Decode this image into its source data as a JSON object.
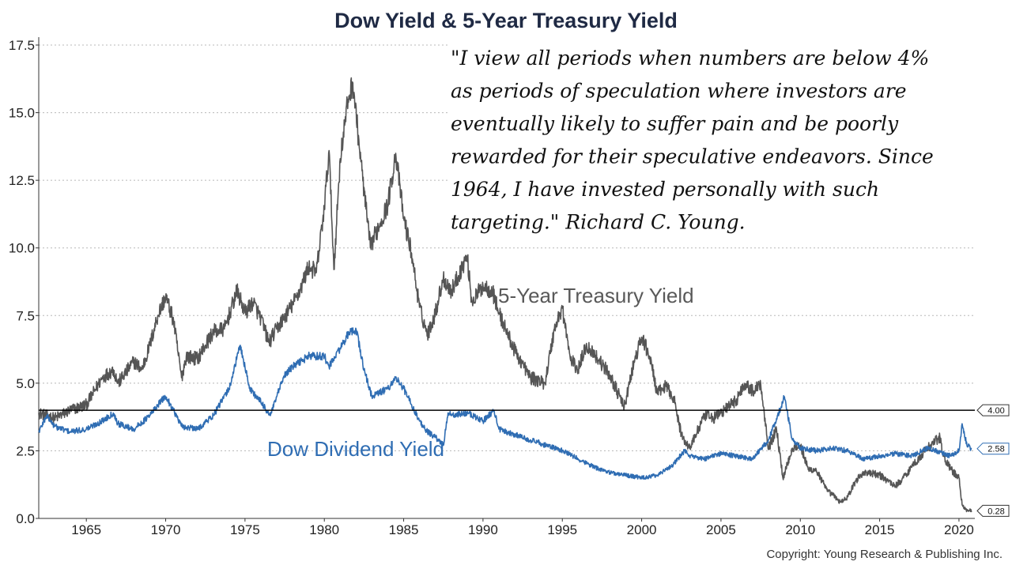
{
  "chart_data": {
    "type": "line",
    "title": "Dow Yield & 5-Year Treasury Yield",
    "xlabel": "",
    "ylabel": "",
    "xlim": [
      1962.0,
      2021.0
    ],
    "ylim": [
      0.0,
      17.5
    ],
    "x_ticks": [
      {
        "value": 1965,
        "label": "1965"
      },
      {
        "value": 1970,
        "label": "1970"
      },
      {
        "value": 1975,
        "label": "1975"
      },
      {
        "value": 1980,
        "label": "1980"
      },
      {
        "value": 1985,
        "label": "1985"
      },
      {
        "value": 1990,
        "label": "1990"
      },
      {
        "value": 1995,
        "label": "1995"
      },
      {
        "value": 2000,
        "label": "2000"
      },
      {
        "value": 2005,
        "label": "2005"
      },
      {
        "value": 2010,
        "label": "2010"
      },
      {
        "value": 2015,
        "label": "2015"
      },
      {
        "value": 2020,
        "label": "2020"
      }
    ],
    "y_ticks": [
      {
        "value": 0.0,
        "label": "0.0"
      },
      {
        "value": 2.5,
        "label": "2.5"
      },
      {
        "value": 5.0,
        "label": "5.0"
      },
      {
        "value": 7.5,
        "label": "7.5"
      },
      {
        "value": 10.0,
        "label": "10.0"
      },
      {
        "value": 12.5,
        "label": "12.5"
      },
      {
        "value": 15.0,
        "label": "15.0"
      },
      {
        "value": 17.5,
        "label": "17.5"
      }
    ],
    "grid": true,
    "series": [
      {
        "name": "5-Year Treasury Yield",
        "color": "#555555",
        "x": [
          1962.0,
          1963.0,
          1964.0,
          1965.0,
          1966.0,
          1966.7,
          1967.0,
          1968.0,
          1968.5,
          1969.0,
          1969.5,
          1970.0,
          1970.5,
          1971.0,
          1971.3,
          1972.0,
          1973.0,
          1973.7,
          1974.5,
          1975.0,
          1975.5,
          1976.0,
          1976.5,
          1977.0,
          1978.0,
          1978.5,
          1979.0,
          1979.5,
          1980.0,
          1980.3,
          1980.6,
          1981.0,
          1981.5,
          1981.8,
          1982.3,
          1982.9,
          1983.0,
          1983.5,
          1984.0,
          1984.5,
          1985.0,
          1985.5,
          1986.0,
          1986.5,
          1987.0,
          1987.5,
          1987.8,
          1988.0,
          1989.0,
          1989.3,
          1990.0,
          1990.6,
          1991.0,
          1992.0,
          1993.0,
          1993.9,
          1994.5,
          1995.0,
          1995.5,
          1996.0,
          1996.5,
          1997.0,
          1998.0,
          1998.9,
          1999.5,
          2000.0,
          2000.5,
          2001.0,
          2001.5,
          2002.0,
          2002.5,
          2003.0,
          2003.5,
          2004.0,
          2004.5,
          2005.0,
          2006.0,
          2006.5,
          2007.0,
          2007.5,
          2008.0,
          2008.5,
          2008.9,
          2009.5,
          2010.0,
          2010.5,
          2011.0,
          2011.7,
          2012.0,
          2012.5,
          2013.0,
          2013.5,
          2014.0,
          2015.0,
          2016.0,
          2016.5,
          2017.0,
          2018.0,
          2018.8,
          2019.0,
          2019.5,
          2020.0,
          2020.2,
          2020.5,
          2020.8
        ],
        "values": [
          3.9,
          3.7,
          4.0,
          4.2,
          5.2,
          5.5,
          5.0,
          5.8,
          5.5,
          6.4,
          7.5,
          8.2,
          7.3,
          5.2,
          6.0,
          5.9,
          6.9,
          7.0,
          8.4,
          7.6,
          8.0,
          7.4,
          6.5,
          7.0,
          7.9,
          8.5,
          9.3,
          9.1,
          11.5,
          13.6,
          9.2,
          13.3,
          15.5,
          16.1,
          13.2,
          10.0,
          10.2,
          10.9,
          11.6,
          13.5,
          11.1,
          9.8,
          7.8,
          6.8,
          7.6,
          8.9,
          8.6,
          8.4,
          9.7,
          8.0,
          8.6,
          8.4,
          7.6,
          6.2,
          5.2,
          5.0,
          7.0,
          7.8,
          5.9,
          5.5,
          6.4,
          6.1,
          5.3,
          4.1,
          5.7,
          6.7,
          6.0,
          4.6,
          4.9,
          4.5,
          3.1,
          2.6,
          3.2,
          3.8,
          3.7,
          3.9,
          4.4,
          5.0,
          4.7,
          5.0,
          2.6,
          3.3,
          1.5,
          2.6,
          2.7,
          1.8,
          1.8,
          1.0,
          0.9,
          0.6,
          0.8,
          1.4,
          1.7,
          1.6,
          1.2,
          1.5,
          1.9,
          2.6,
          3.0,
          2.3,
          1.8,
          1.5,
          0.5,
          0.3,
          0.28
        ]
      },
      {
        "name": "Dow Dividend Yield",
        "color": "#2f6db3",
        "x": [
          1962.0,
          1962.5,
          1963.0,
          1964.0,
          1965.0,
          1966.0,
          1966.7,
          1967.0,
          1968.0,
          1969.0,
          1969.5,
          1970.0,
          1970.5,
          1971.0,
          1972.0,
          1973.0,
          1974.0,
          1974.7,
          1975.3,
          1976.0,
          1976.6,
          1977.0,
          1977.5,
          1978.0,
          1979.0,
          1980.0,
          1980.3,
          1981.0,
          1981.5,
          1982.0,
          1982.5,
          1983.0,
          1984.0,
          1984.5,
          1985.0,
          1985.5,
          1986.0,
          1986.5,
          1987.0,
          1987.5,
          1987.8,
          1988.0,
          1989.0,
          1990.0,
          1990.7,
          1991.0,
          1992.0,
          1993.0,
          1994.0,
          1995.0,
          1996.0,
          1997.0,
          1998.0,
          1999.0,
          2000.0,
          2001.0,
          2002.0,
          2002.7,
          2003.0,
          2004.0,
          2005.0,
          2006.0,
          2007.0,
          2008.0,
          2008.5,
          2009.0,
          2009.5,
          2010.0,
          2011.0,
          2012.0,
          2013.0,
          2014.0,
          2015.0,
          2016.0,
          2017.0,
          2018.0,
          2019.0,
          2019.5,
          2020.0,
          2020.2,
          2020.5,
          2020.8
        ],
        "values": [
          3.2,
          3.8,
          3.4,
          3.2,
          3.3,
          3.6,
          3.9,
          3.5,
          3.3,
          3.8,
          4.2,
          4.5,
          4.0,
          3.4,
          3.3,
          3.8,
          4.8,
          6.4,
          4.8,
          4.3,
          3.8,
          4.5,
          5.3,
          5.6,
          6.0,
          6.0,
          5.6,
          6.3,
          6.8,
          7.0,
          5.5,
          4.5,
          4.8,
          5.2,
          4.8,
          4.2,
          3.6,
          3.2,
          3.0,
          2.7,
          3.9,
          3.8,
          3.9,
          3.6,
          4.0,
          3.3,
          3.1,
          2.9,
          2.7,
          2.5,
          2.2,
          1.9,
          1.7,
          1.6,
          1.5,
          1.6,
          2.0,
          2.5,
          2.3,
          2.2,
          2.4,
          2.3,
          2.2,
          2.9,
          3.7,
          4.5,
          2.9,
          2.6,
          2.5,
          2.6,
          2.5,
          2.2,
          2.3,
          2.4,
          2.3,
          2.6,
          2.4,
          2.3,
          2.5,
          3.5,
          2.7,
          2.58
        ]
      }
    ],
    "reference_line": {
      "value": 4.0,
      "color": "#000000"
    },
    "end_tags": [
      {
        "label": "4.00",
        "value": 4.0
      },
      {
        "label": "2.58",
        "value": 2.58,
        "color": "#2f6db3"
      },
      {
        "label": "0.28",
        "value": 0.28
      }
    ],
    "series_labels": [
      {
        "text": "5-Year Treasury Yield"
      },
      {
        "text": "Dow Dividend Yield"
      }
    ],
    "quote_lines": [
      "\"I view all periods when numbers are below 4%",
      "as periods of speculation where investors are",
      "eventually likely to suffer pain and be poorly",
      "rewarded for their speculative endeavors. Since",
      "1964, I have invested personally with such",
      "targeting.\"    Richard C. Young."
    ],
    "copyright": "Copyright: Young Research & Publishing Inc."
  }
}
